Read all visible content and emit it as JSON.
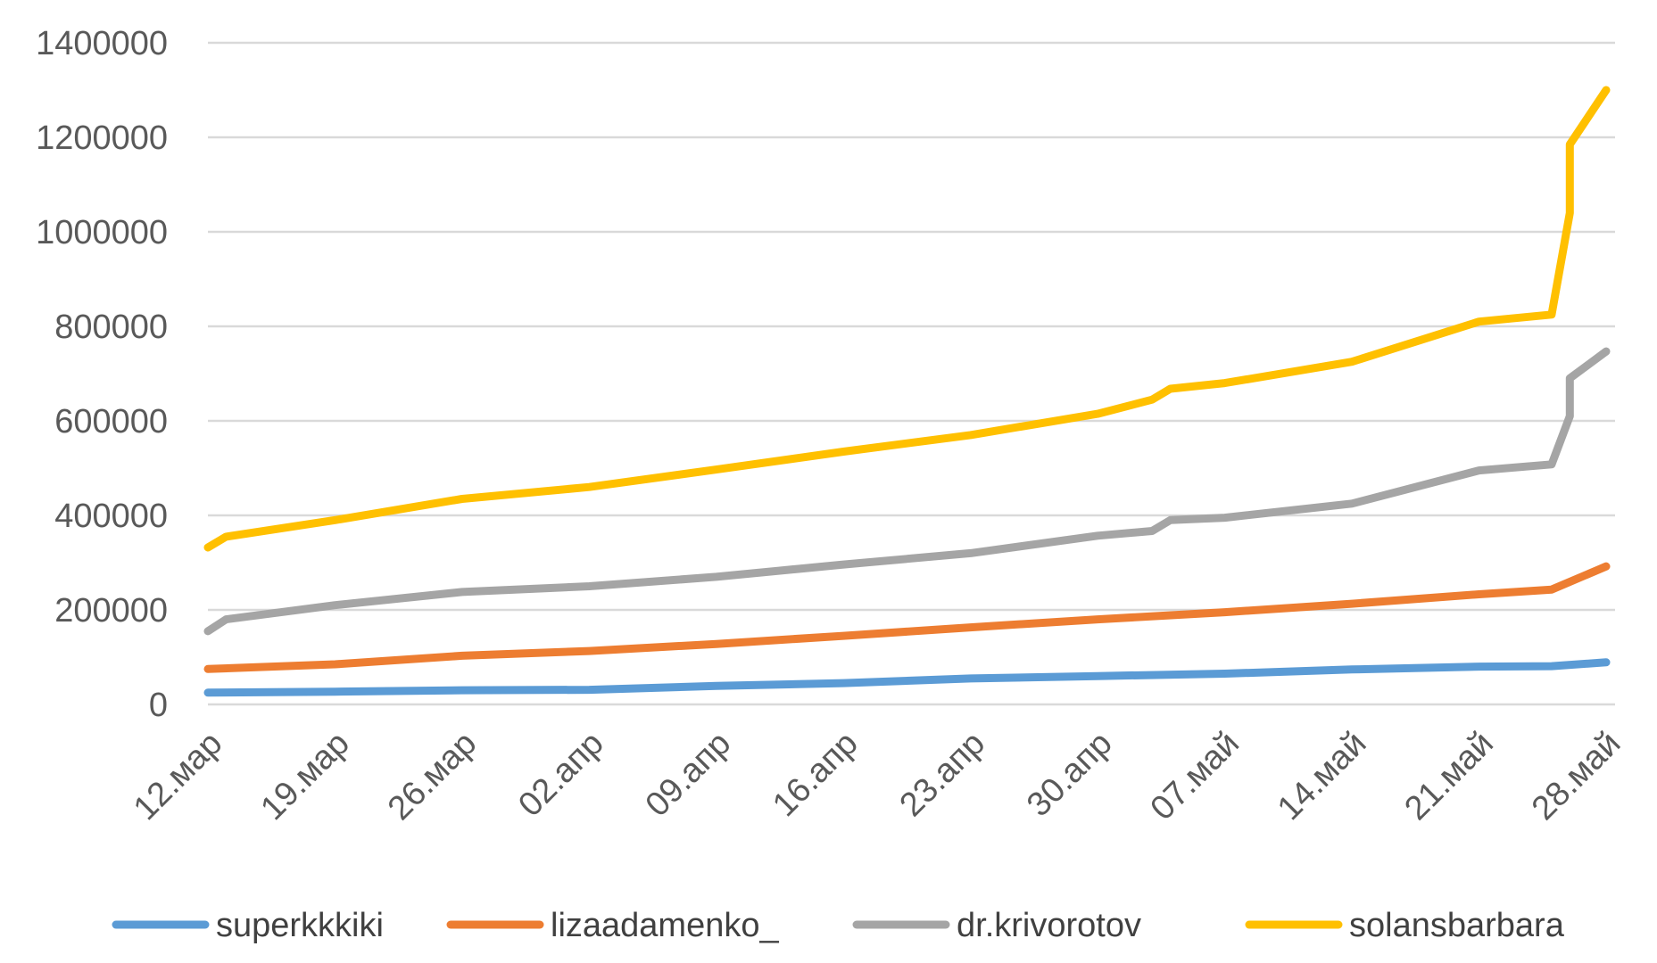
{
  "chart_data": {
    "type": "line",
    "title": "",
    "xlabel": "",
    "ylabel": "",
    "ylim": [
      0,
      1400000
    ],
    "yticks": [
      0,
      200000,
      400000,
      600000,
      800000,
      1000000,
      1200000,
      1400000
    ],
    "ytick_labels": [
      "0",
      "200000",
      "400000",
      "600000",
      "800000",
      "1000000",
      "1200000",
      "1400000"
    ],
    "x_start_date": "12.мар",
    "x_end_date": "28.май",
    "xtick_labels": [
      "12.мар",
      "19.мар",
      "26.мар",
      "02.апр",
      "09.апр",
      "16.апр",
      "23.апр",
      "30.апр",
      "07.май",
      "14.май",
      "21.май",
      "28.май"
    ],
    "grid": true,
    "legend_position": "bottom",
    "series": [
      {
        "name": "superkkkiki",
        "color": "#5B9BD5",
        "points": [
          [
            "12.мар",
            25000
          ],
          [
            "19.мар",
            27000
          ],
          [
            "26.мар",
            30000
          ],
          [
            "02.апр",
            31000
          ],
          [
            "09.апр",
            39000
          ],
          [
            "16.апр",
            45000
          ],
          [
            "23.апр",
            55000
          ],
          [
            "30.апр",
            60000
          ],
          [
            "07.май",
            65000
          ],
          [
            "14.май",
            74000
          ],
          [
            "21.май",
            80000
          ],
          [
            "25.май",
            81000
          ],
          [
            "28.май",
            89000
          ]
        ]
      },
      {
        "name": "lizaadamenko_",
        "color": "#ED7D31",
        "points": [
          [
            "12.мар",
            75000
          ],
          [
            "19.мар",
            85000
          ],
          [
            "26.мар",
            103000
          ],
          [
            "02.апр",
            113000
          ],
          [
            "09.апр",
            128000
          ],
          [
            "16.апр",
            145000
          ],
          [
            "23.апр",
            163000
          ],
          [
            "30.апр",
            180000
          ],
          [
            "07.май",
            195000
          ],
          [
            "14.май",
            213000
          ],
          [
            "21.май",
            233000
          ],
          [
            "25.май",
            243000
          ],
          [
            "28.май",
            292000
          ]
        ]
      },
      {
        "name": "dr.krivorotov",
        "color": "#A5A5A5",
        "points": [
          [
            "12.мар",
            155000
          ],
          [
            "13.мар",
            180000
          ],
          [
            "19.мар",
            210000
          ],
          [
            "26.мар",
            238000
          ],
          [
            "02.апр",
            250000
          ],
          [
            "09.апр",
            270000
          ],
          [
            "16.апр",
            296000
          ],
          [
            "23.апр",
            320000
          ],
          [
            "30.апр",
            357000
          ],
          [
            "03.май",
            367000
          ],
          [
            "04.май",
            390000
          ],
          [
            "07.май",
            395000
          ],
          [
            "14.май",
            425000
          ],
          [
            "21.май",
            495000
          ],
          [
            "25.май",
            508000
          ],
          [
            "26.май",
            610000
          ],
          [
            "26.май",
            690000
          ],
          [
            "28.май",
            747000
          ]
        ]
      },
      {
        "name": "solansbarbara",
        "color": "#FFC000",
        "points": [
          [
            "12.мар",
            332000
          ],
          [
            "13.мар",
            355000
          ],
          [
            "19.мар",
            390000
          ],
          [
            "26.мар",
            435000
          ],
          [
            "02.апр",
            460000
          ],
          [
            "09.апр",
            497000
          ],
          [
            "16.апр",
            535000
          ],
          [
            "23.апр",
            570000
          ],
          [
            "30.апр",
            615000
          ],
          [
            "03.май",
            645000
          ],
          [
            "04.май",
            668000
          ],
          [
            "07.май",
            680000
          ],
          [
            "14.май",
            725000
          ],
          [
            "21.май",
            810000
          ],
          [
            "25.май",
            825000
          ],
          [
            "26.май",
            1040000
          ],
          [
            "26.май",
            1185000
          ],
          [
            "28.май",
            1300000
          ]
        ]
      }
    ]
  }
}
